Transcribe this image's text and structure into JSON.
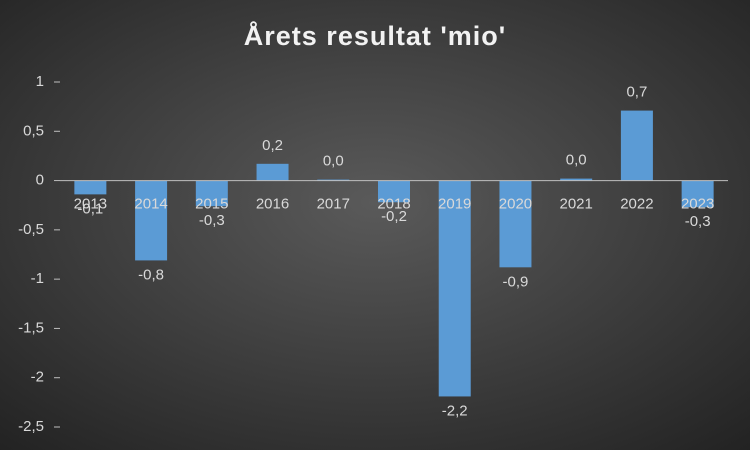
{
  "chart_data": {
    "type": "bar",
    "title": "Årets resultat 'mio'",
    "categories": [
      "2013",
      "2014",
      "2015",
      "2016",
      "2017",
      "2018",
      "2019",
      "2020",
      "2021",
      "2022",
      "2023"
    ],
    "values": [
      -0.14,
      -0.81,
      -0.26,
      0.17,
      0.01,
      -0.22,
      -2.19,
      -0.88,
      0.02,
      0.71,
      -0.27
    ],
    "value_labels": [
      "-0,1",
      "-0,8",
      "-0,3",
      "0,2",
      "0,0",
      "-0,2",
      "-2,2",
      "-0,9",
      "0,0",
      "0,7",
      "-0,3"
    ],
    "color": "#5b9bd5",
    "ylim": [
      -2.5,
      1
    ],
    "yticks": [
      {
        "value": -2.5,
        "label": "-2,5"
      },
      -2,
      {
        "value": -1.5,
        "label": "-1,5"
      },
      -1,
      {
        "value": -0.5,
        "label": "-0,5"
      },
      0,
      {
        "value": 0.5,
        "label": "0,5"
      },
      1
    ]
  }
}
